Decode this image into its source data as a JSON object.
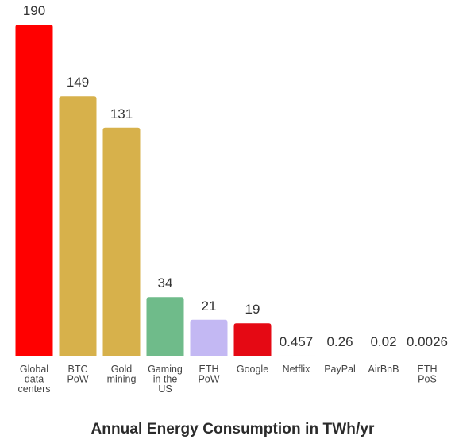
{
  "chart_data": {
    "type": "bar",
    "title": "Annual Energy Consumption in TWh/yr",
    "xlabel": "",
    "ylabel": "",
    "ylim": [
      0,
      190
    ],
    "grid": false,
    "legend": "none",
    "categories": [
      "Global data centers",
      "BTC PoW",
      "Gold mining",
      "Gaming in the US",
      "ETH PoW",
      "Google",
      "Netflix",
      "PayPal",
      "AirBnB",
      "ETH PoS"
    ],
    "category_label_lines": [
      [
        "Global",
        "data",
        "centers"
      ],
      [
        "BTC",
        "PoW"
      ],
      [
        "Gold",
        "mining"
      ],
      [
        "Gaming",
        "in the",
        "US"
      ],
      [
        "ETH",
        "PoW"
      ],
      [
        "Google"
      ],
      [
        "Netflix"
      ],
      [
        "PayPal"
      ],
      [
        "AirBnB"
      ],
      [
        "ETH",
        "PoS"
      ]
    ],
    "values": [
      190,
      149,
      131,
      34,
      21,
      19,
      0.457,
      0.26,
      0.02,
      0.0026
    ],
    "value_labels": [
      "190",
      "149",
      "131",
      "34",
      "21",
      "19",
      "0.457",
      "0.26",
      "0.02",
      "0.0026"
    ],
    "colors": [
      "#ff0000",
      "#d7b14b",
      "#d7b14b",
      "#6fbb8a",
      "#c3b8f3",
      "#e50914",
      "#e50914",
      "#1d4ea0",
      "#ff5a5f",
      "#c3b8f3"
    ]
  }
}
